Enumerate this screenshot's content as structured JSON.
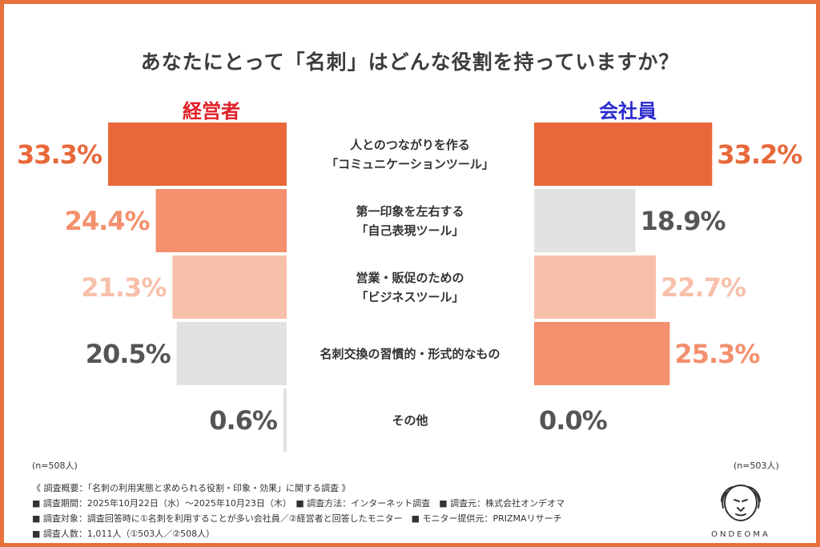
{
  "title": "あなたにとって「名刺」はどんな役割を持っていますか？",
  "colors": {
    "frame": "#e8703a",
    "left_header": "#e0202a",
    "right_header": "#2a2ad0",
    "level1": "#e8683a",
    "level2": "#f4906e",
    "level3": "#f8c0aa",
    "gray": "#e2e2e2",
    "gray_text": "#555555"
  },
  "chart_data": {
    "type": "bar",
    "categories": [
      [
        "人とのつながりを作る",
        "「コミュニケーションツール」"
      ],
      [
        "第一印象を左右する",
        "「自己表現ツール」"
      ],
      [
        "営業・販促のための",
        "「ビジネスツール」"
      ],
      [
        "名刺交換の習慣的・形式的なもの"
      ],
      [
        "その他"
      ]
    ],
    "series": [
      {
        "name": "経営者",
        "values": [
          33.3,
          24.4,
          21.3,
          20.5,
          0.6
        ],
        "labels": [
          "33.3%",
          "24.4%",
          "21.3%",
          "20.5%",
          "0.6%"
        ],
        "colors": [
          "#e8683a",
          "#f4906e",
          "#f8c0aa",
          "#e2e2e2",
          "#e2e2e2"
        ],
        "label_colors": [
          "#e8683a",
          "#f4906e",
          "#f8c0aa",
          "#555555",
          "#555555"
        ],
        "n": "(n=508人)"
      },
      {
        "name": "会社員",
        "values": [
          33.2,
          18.9,
          22.7,
          25.3,
          0.0
        ],
        "labels": [
          "33.2%",
          "18.9%",
          "22.7%",
          "25.3%",
          "0.0%"
        ],
        "colors": [
          "#e8683a",
          "#e2e2e2",
          "#f8c0aa",
          "#f4906e",
          "#e2e2e2"
        ],
        "label_colors": [
          "#e8683a",
          "#555555",
          "#f8c0aa",
          "#f4906e",
          "#555555"
        ],
        "n": "(n=503人)"
      }
    ],
    "xlim": [
      0,
      33.3
    ]
  },
  "notes": [
    "《 調査概要：「名刺の利用実態と求められる役割・印象・効果」に関する調査 》",
    "■ 調査期間：2025年10月22日（水）～2025年10月23日（木）　■ 調査方法：インターネット調査　■ 調査元：株式会社オンデオマ",
    "■ 調査対象：調査回答時に①名刺を利用することが多い会社員／②経営者と回答したモニター　■ モニター提供元：PRIZMAリサーチ",
    "■ 調査人数：1,011人（①503人／②508人）"
  ],
  "logo": {
    "icon": "lion-icon",
    "text": "ONDEOMA"
  }
}
